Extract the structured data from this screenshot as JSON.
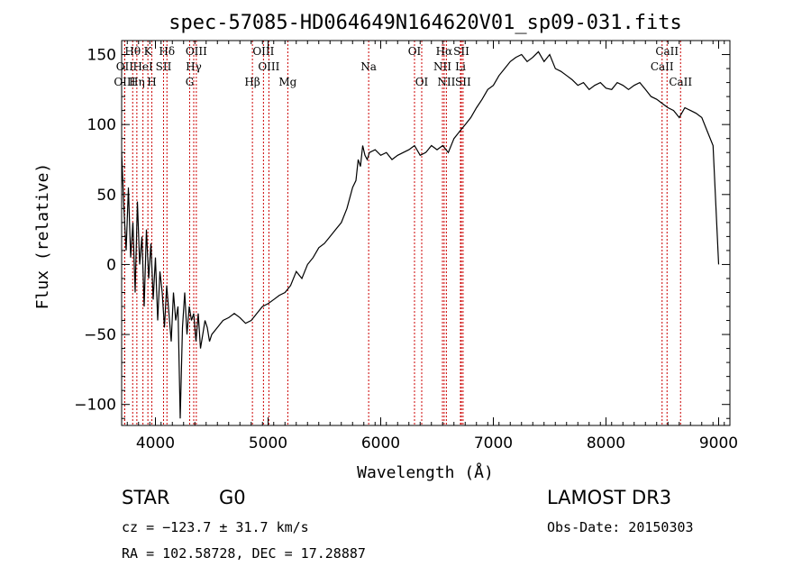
{
  "chart_data": {
    "type": "line",
    "title": "spec-57085-HD064649N164620V01_sp09-031.fits",
    "xlabel": "Wavelength (Å)",
    "ylabel": "Flux (relative)",
    "xlim": [
      3700,
      9100
    ],
    "ylim": [
      -115,
      160
    ],
    "xticks": [
      4000,
      5000,
      6000,
      7000,
      8000,
      9000
    ],
    "yticks": [
      -100,
      -50,
      0,
      50,
      100,
      150
    ],
    "xtick_labels": [
      "4000",
      "5000",
      "6000",
      "7000",
      "8000",
      "9000"
    ],
    "ytick_labels": [
      "−100",
      "−50",
      "0",
      "50",
      "100",
      "150"
    ],
    "series": [
      {
        "name": "flux",
        "x": [
          3700,
          3720,
          3740,
          3760,
          3780,
          3800,
          3820,
          3840,
          3860,
          3880,
          3900,
          3920,
          3940,
          3960,
          3980,
          4000,
          4020,
          4040,
          4060,
          4080,
          4100,
          4120,
          4140,
          4160,
          4180,
          4200,
          4220,
          4240,
          4260,
          4280,
          4300,
          4320,
          4340,
          4360,
          4380,
          4400,
          4420,
          4440,
          4460,
          4480,
          4500,
          4550,
          4600,
          4650,
          4700,
          4750,
          4800,
          4850,
          4900,
          4950,
          5000,
          5050,
          5100,
          5150,
          5200,
          5250,
          5300,
          5350,
          5400,
          5450,
          5500,
          5550,
          5600,
          5650,
          5700,
          5750,
          5780,
          5800,
          5820,
          5840,
          5860,
          5880,
          5900,
          5950,
          6000,
          6050,
          6100,
          6150,
          6200,
          6250,
          6300,
          6350,
          6400,
          6450,
          6500,
          6550,
          6600,
          6650,
          6700,
          6750,
          6800,
          6850,
          6900,
          6950,
          7000,
          7050,
          7100,
          7150,
          7200,
          7250,
          7300,
          7350,
          7400,
          7450,
          7500,
          7550,
          7600,
          7650,
          7700,
          7750,
          7800,
          7850,
          7900,
          7950,
          8000,
          8050,
          8100,
          8150,
          8200,
          8250,
          8300,
          8350,
          8400,
          8450,
          8500,
          8550,
          8600,
          8650,
          8700,
          8750,
          8800,
          8850,
          8900,
          8950,
          9000
        ],
        "y": [
          80,
          40,
          10,
          55,
          5,
          30,
          -20,
          45,
          0,
          20,
          -30,
          25,
          -10,
          15,
          -25,
          5,
          -40,
          -5,
          -20,
          -45,
          -15,
          -35,
          -55,
          -20,
          -40,
          -30,
          -110,
          -45,
          -20,
          -50,
          -30,
          -40,
          -35,
          -55,
          -35,
          -60,
          -50,
          -40,
          -45,
          -55,
          -50,
          -45,
          -40,
          -38,
          -35,
          -38,
          -42,
          -40,
          -35,
          -30,
          -28,
          -25,
          -22,
          -20,
          -15,
          -5,
          -10,
          0,
          5,
          12,
          15,
          20,
          25,
          30,
          40,
          55,
          60,
          75,
          70,
          85,
          78,
          75,
          80,
          82,
          78,
          80,
          75,
          78,
          80,
          82,
          85,
          78,
          80,
          85,
          82,
          85,
          80,
          90,
          95,
          100,
          105,
          112,
          118,
          125,
          128,
          135,
          140,
          145,
          148,
          150,
          145,
          148,
          152,
          145,
          150,
          140,
          138,
          135,
          132,
          128,
          130,
          125,
          128,
          130,
          126,
          125,
          130,
          128,
          125,
          128,
          130,
          125,
          120,
          118,
          115,
          112,
          110,
          105,
          112,
          110,
          108,
          105,
          95,
          85,
          0
        ]
      }
    ],
    "line_markers": [
      {
        "label": "OII",
        "x": 3727,
        "row": 2
      },
      {
        "label": "OIII",
        "x": 3727,
        "row": 3
      },
      {
        "label": "Hθ",
        "x": 3798,
        "row": 1
      },
      {
        "label": "Hη",
        "x": 3835,
        "row": 3
      },
      {
        "label": "HeI",
        "x": 3889,
        "row": 2
      },
      {
        "label": "K",
        "x": 3933,
        "row": 1
      },
      {
        "label": "SII",
        "x": 4072,
        "row": 2
      },
      {
        "label": "H",
        "x": 3968,
        "row": 3
      },
      {
        "label": "Hδ",
        "x": 4102,
        "row": 1
      },
      {
        "label": "OIII",
        "x": 4363,
        "row": 1
      },
      {
        "label": "Hγ",
        "x": 4340,
        "row": 2
      },
      {
        "label": "G",
        "x": 4304,
        "row": 3
      },
      {
        "label": "Hβ",
        "x": 4861,
        "row": 3
      },
      {
        "label": "OIII",
        "x": 4959,
        "row": 1
      },
      {
        "label": "OIII",
        "x": 5007,
        "row": 2
      },
      {
        "label": "Mg",
        "x": 5175,
        "row": 3
      },
      {
        "label": "Na",
        "x": 5893,
        "row": 2
      },
      {
        "label": "OI",
        "x": 6300,
        "row": 1
      },
      {
        "label": "OI",
        "x": 6364,
        "row": 3
      },
      {
        "label": "Hα",
        "x": 6563,
        "row": 1
      },
      {
        "label": "NII",
        "x": 6548,
        "row": 2
      },
      {
        "label": "NII",
        "x": 6583,
        "row": 3
      },
      {
        "label": "SII",
        "x": 6716,
        "row": 1
      },
      {
        "label": "Li",
        "x": 6708,
        "row": 2
      },
      {
        "label": "SII",
        "x": 6731,
        "row": 3
      },
      {
        "label": "CaII",
        "x": 8498,
        "row": 2
      },
      {
        "label": "CaII",
        "x": 8542,
        "row": 1
      },
      {
        "label": "CaII",
        "x": 8662,
        "row": 3
      }
    ]
  },
  "info": {
    "class": "STAR",
    "subclass": "G0",
    "survey": "LAMOST DR3",
    "cz": "cz = −123.7 ± 31.7 km/s",
    "obs_date": "Obs-Date: 20150303",
    "coords": "RA = 102.58728, DEC =  17.28887"
  },
  "colors": {
    "line": "#000000",
    "marker": "#cc0000",
    "axis": "#000000"
  }
}
